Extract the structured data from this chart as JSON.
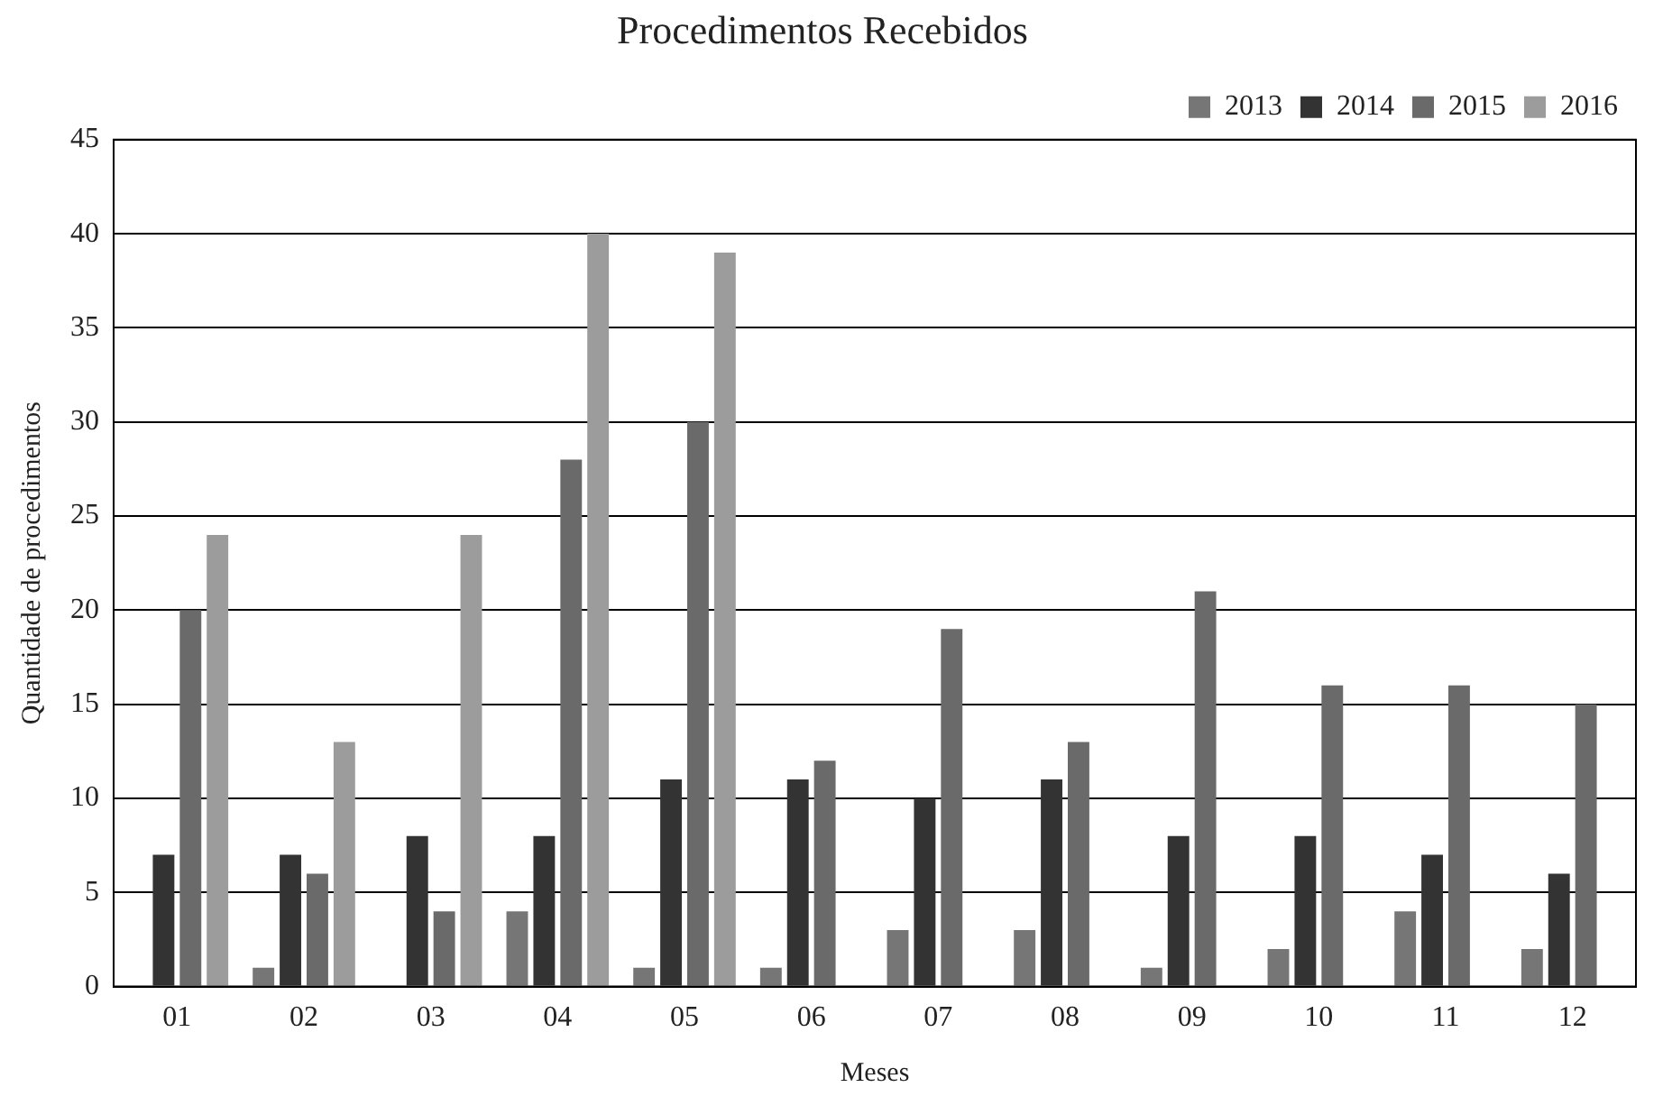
{
  "chart_data": {
    "type": "bar",
    "title": "Procedimentos Recebidos",
    "xlabel": "Meses",
    "ylabel": "Quantidade de procedimentos",
    "categories": [
      "01",
      "02",
      "03",
      "04",
      "05",
      "06",
      "07",
      "08",
      "09",
      "10",
      "11",
      "12"
    ],
    "series": [
      {
        "name": "2013",
        "color": "#767676",
        "values": [
          0,
          1,
          0,
          4,
          1,
          1,
          3,
          3,
          1,
          2,
          4,
          2
        ]
      },
      {
        "name": "2014",
        "color": "#333333",
        "values": [
          7,
          7,
          8,
          8,
          11,
          11,
          10,
          11,
          8,
          8,
          7,
          6
        ]
      },
      {
        "name": "2015",
        "color": "#6a6a6a",
        "values": [
          20,
          6,
          4,
          28,
          30,
          12,
          19,
          13,
          21,
          16,
          16,
          15
        ]
      },
      {
        "name": "2016",
        "color": "#9c9c9c",
        "values": [
          24,
          13,
          24,
          40,
          39,
          null,
          null,
          null,
          null,
          null,
          null,
          null
        ]
      }
    ],
    "ylim": [
      0,
      45
    ],
    "yticks": [
      0,
      5,
      10,
      15,
      20,
      25,
      30,
      35,
      40,
      45
    ],
    "grid": "y",
    "legend": "top right"
  }
}
